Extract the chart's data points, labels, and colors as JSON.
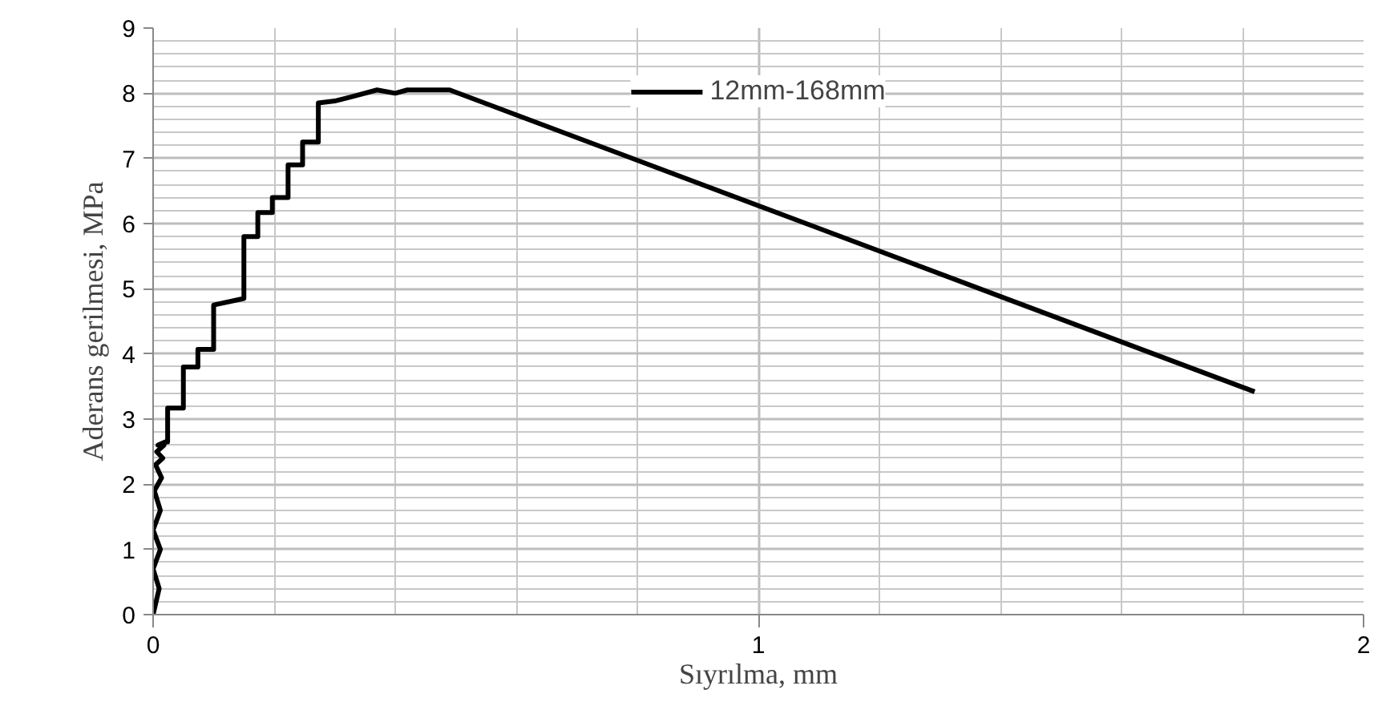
{
  "chart_data": {
    "type": "line",
    "xlabel": "Sıyrılma, mm",
    "ylabel": "Aderans gerilmesi, MPa",
    "xlim": [
      0,
      2
    ],
    "xticks": [
      0,
      1,
      2
    ],
    "ylim": [
      0,
      9
    ],
    "yticks": [
      0,
      1,
      2,
      3,
      4,
      5,
      6,
      7,
      8,
      9
    ],
    "grid": true,
    "legend": "top",
    "marker": "none",
    "line_style": "solid",
    "series": [
      {
        "name": "12mm-168mm",
        "color": "#000000",
        "x": [
          0,
          0.01,
          0,
          0.012,
          0,
          0.012,
          0.002,
          0.014,
          0.004,
          0.016,
          0.006,
          0.018,
          0.008,
          0.02,
          0.024,
          0.024,
          0.05,
          0.05,
          0.074,
          0.074,
          0.1,
          0.1,
          0.15,
          0.15,
          0.173,
          0.173,
          0.197,
          0.197,
          0.223,
          0.223,
          0.247,
          0.247,
          0.273,
          0.273,
          0.3,
          0.33,
          0.37,
          0.4,
          0.42,
          0.49,
          1.82
        ],
        "values": [
          0,
          0.4,
          0.7,
          1.0,
          1.3,
          1.6,
          1.9,
          2.1,
          2.3,
          2.4,
          2.5,
          2.6,
          2.6,
          2.65,
          2.65,
          3.17,
          3.17,
          3.8,
          3.8,
          4.07,
          4.07,
          4.75,
          4.85,
          5.8,
          5.8,
          6.17,
          6.17,
          6.4,
          6.4,
          6.9,
          6.9,
          7.25,
          7.25,
          7.85,
          7.88,
          7.95,
          8.05,
          8.0,
          8.05,
          8.05,
          3.42
        ]
      }
    ]
  }
}
